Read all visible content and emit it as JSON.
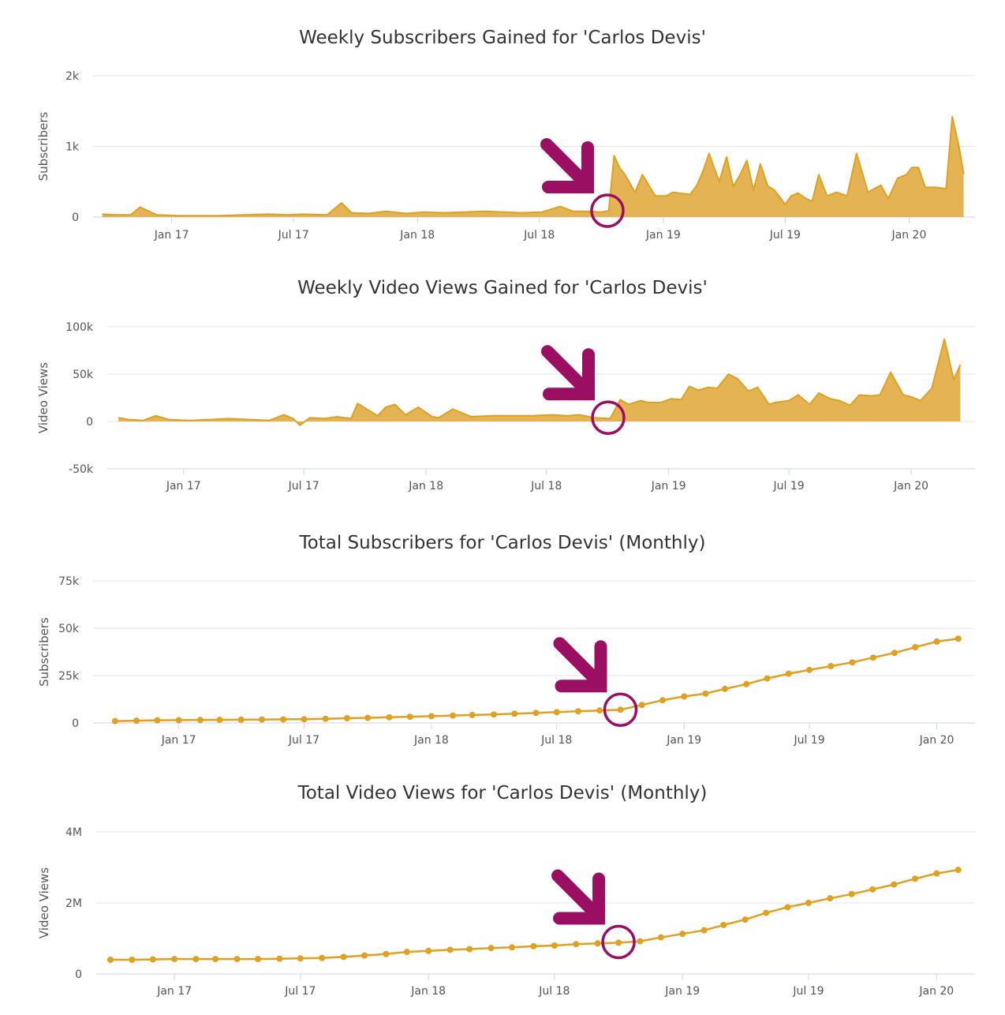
{
  "colors": {
    "series": "#e0a020",
    "fill": "#e3b04b",
    "grid": "#e6e6e6",
    "axis": "#ccd6eb",
    "annotation": "#9b0f63",
    "text": "#333333"
  },
  "chart_data": [
    {
      "type": "area",
      "title": "Weekly Subscribers Gained for 'Carlos Devis'",
      "ylabel": "Subscribers",
      "xlabel": "",
      "grid": true,
      "ylim": [
        0,
        2000
      ],
      "yticks": [
        0,
        1000,
        2000
      ],
      "ytick_labels": [
        "0",
        "1k",
        "2k"
      ],
      "xticks": [
        "2017-01-01",
        "2017-07-01",
        "2018-01-01",
        "2018-07-01",
        "2019-01-01",
        "2019-07-01",
        "2020-01-01"
      ],
      "xtick_labels": [
        "Jan 17",
        "Jul 17",
        "Jan 18",
        "Jul 18",
        "Jan 19",
        "Jul 19",
        "Jan 20"
      ],
      "xlim": [
        "2016-09-18",
        "2020-03-26"
      ],
      "annotation": {
        "type": "arrow-and-circle",
        "date": "2018-10-10",
        "value": 90
      },
      "series": [
        {
          "x": [
            "2016-09-20",
            "2016-10-10",
            "2016-11-01",
            "2016-11-15",
            "2016-12-10",
            "2017-01-10",
            "2017-02-15",
            "2017-03-15",
            "2017-04-20",
            "2017-05-25",
            "2017-06-20",
            "2017-07-15",
            "2017-08-20",
            "2017-09-10",
            "2017-09-25",
            "2017-10-20",
            "2017-11-15",
            "2017-12-15",
            "2018-01-10",
            "2018-02-10",
            "2018-03-10",
            "2018-04-10",
            "2018-05-10",
            "2018-06-05",
            "2018-07-05",
            "2018-08-01",
            "2018-08-20",
            "2018-09-10",
            "2018-10-01",
            "2018-10-12",
            "2018-10-20",
            "2018-10-28",
            "2018-11-05",
            "2018-11-20",
            "2018-12-01",
            "2018-12-20",
            "2019-01-05",
            "2019-01-15",
            "2019-02-01",
            "2019-02-10",
            "2019-02-20",
            "2019-03-01",
            "2019-03-10",
            "2019-03-25",
            "2019-04-05",
            "2019-04-15",
            "2019-04-25",
            "2019-05-05",
            "2019-05-15",
            "2019-05-25",
            "2019-06-05",
            "2019-06-15",
            "2019-07-01",
            "2019-07-10",
            "2019-07-20",
            "2019-08-01",
            "2019-08-10",
            "2019-08-20",
            "2019-09-01",
            "2019-09-15",
            "2019-10-01",
            "2019-10-15",
            "2019-11-01",
            "2019-11-10",
            "2019-11-20",
            "2019-12-01",
            "2019-12-15",
            "2019-12-28",
            "2020-01-05",
            "2020-01-15",
            "2020-01-25",
            "2020-02-10",
            "2020-02-25",
            "2020-03-05",
            "2020-03-15",
            "2020-03-22"
          ],
          "y": [
            40,
            30,
            30,
            140,
            30,
            20,
            20,
            20,
            30,
            40,
            30,
            40,
            30,
            200,
            60,
            50,
            80,
            50,
            70,
            60,
            70,
            80,
            70,
            60,
            70,
            150,
            80,
            80,
            70,
            90,
            870,
            700,
            600,
            350,
            600,
            300,
            300,
            350,
            330,
            320,
            450,
            650,
            900,
            500,
            850,
            430,
            600,
            800,
            380,
            750,
            440,
            380,
            180,
            300,
            340,
            260,
            220,
            600,
            300,
            350,
            300,
            900,
            350,
            400,
            450,
            260,
            550,
            600,
            700,
            700,
            420,
            420,
            400,
            1420,
            1000,
            610
          ]
        }
      ]
    },
    {
      "type": "area",
      "title": "Weekly Video Views Gained for 'Carlos Devis'",
      "ylabel": "Video Views",
      "xlabel": "",
      "grid": true,
      "ylim": [
        -50000,
        100000
      ],
      "yticks": [
        -50000,
        0,
        50000,
        100000
      ],
      "ytick_labels": [
        "-50k",
        "0",
        "50k",
        "100k"
      ],
      "xticks": [
        "2017-01-01",
        "2017-07-01",
        "2018-01-01",
        "2018-07-01",
        "2019-01-01",
        "2019-07-01",
        "2020-01-01"
      ],
      "xtick_labels": [
        "Jan 17",
        "Jul 17",
        "Jan 18",
        "Jul 18",
        "Jan 19",
        "Jul 19",
        "Jan 20"
      ],
      "xlim": [
        "2016-09-20",
        "2020-03-24"
      ],
      "annotation": {
        "type": "arrow-and-circle",
        "date": "2018-10-02",
        "value": 4000
      },
      "series": [
        {
          "x": [
            "2016-09-25",
            "2016-10-10",
            "2016-11-01",
            "2016-11-20",
            "2016-12-10",
            "2017-01-10",
            "2017-02-10",
            "2017-03-10",
            "2017-04-10",
            "2017-05-10",
            "2017-06-01",
            "2017-06-15",
            "2017-06-25",
            "2017-07-10",
            "2017-08-01",
            "2017-08-20",
            "2017-09-10",
            "2017-09-20",
            "2017-10-20",
            "2017-11-01",
            "2017-11-15",
            "2017-12-01",
            "2017-12-20",
            "2018-01-10",
            "2018-01-20",
            "2018-02-10",
            "2018-03-10",
            "2018-04-10",
            "2018-05-10",
            "2018-06-10",
            "2018-07-10",
            "2018-08-01",
            "2018-08-20",
            "2018-09-10",
            "2018-10-05",
            "2018-10-20",
            "2018-11-01",
            "2018-11-20",
            "2018-12-01",
            "2018-12-20",
            "2019-01-05",
            "2019-01-20",
            "2019-02-01",
            "2019-02-15",
            "2019-03-01",
            "2019-03-15",
            "2019-04-01",
            "2019-04-15",
            "2019-05-01",
            "2019-05-15",
            "2019-06-01",
            "2019-06-10",
            "2019-07-01",
            "2019-07-15",
            "2019-08-01",
            "2019-08-15",
            "2019-09-01",
            "2019-09-15",
            "2019-10-01",
            "2019-10-15",
            "2019-11-01",
            "2019-11-15",
            "2019-12-01",
            "2019-12-20",
            "2020-01-01",
            "2020-01-15",
            "2020-02-01",
            "2020-02-20",
            "2020-03-05",
            "2020-03-15"
          ],
          "y": [
            4000,
            2000,
            1000,
            6000,
            2000,
            1000,
            2000,
            3000,
            2000,
            1000,
            7000,
            3000,
            -4000,
            4000,
            3000,
            5000,
            3000,
            19000,
            6000,
            15000,
            18000,
            7000,
            15000,
            5000,
            4000,
            13000,
            5000,
            6000,
            6000,
            6000,
            7000,
            6000,
            7000,
            4000,
            3000,
            23000,
            18000,
            22000,
            20000,
            20000,
            24000,
            23000,
            37000,
            33000,
            36000,
            35000,
            50000,
            45000,
            32000,
            36000,
            18000,
            20000,
            22000,
            28000,
            18000,
            30000,
            24000,
            22000,
            17000,
            28000,
            27000,
            28000,
            52000,
            28000,
            26000,
            22000,
            35000,
            87000,
            44000,
            60000
          ]
        }
      ]
    },
    {
      "type": "line",
      "title": "Total Subscribers for 'Carlos Devis' (Monthly)",
      "ylabel": "Subscribers",
      "xlabel": "",
      "grid": true,
      "ylim": [
        0,
        75000
      ],
      "yticks": [
        0,
        25000,
        50000,
        75000
      ],
      "ytick_labels": [
        "0",
        "25k",
        "50k",
        "75k"
      ],
      "xticks": [
        "2017-01-01",
        "2017-07-01",
        "2018-01-01",
        "2018-07-01",
        "2019-01-01",
        "2019-07-01",
        "2020-01-01"
      ],
      "xtick_labels": [
        "Jan 17",
        "Jul 17",
        "Jan 18",
        "Jul 18",
        "Jan 19",
        "Jul 19",
        "Jan 20"
      ],
      "xlim": [
        "2016-09-22",
        "2020-02-15"
      ],
      "annotation": {
        "type": "arrow-and-circle",
        "date": "2018-10-01",
        "value": 7000
      },
      "series": [
        {
          "x": [
            "2016-10-01",
            "2016-11-01",
            "2016-12-01",
            "2017-01-01",
            "2017-02-01",
            "2017-03-01",
            "2017-04-01",
            "2017-05-01",
            "2017-06-01",
            "2017-07-01",
            "2017-08-01",
            "2017-09-01",
            "2017-10-01",
            "2017-11-01",
            "2017-12-01",
            "2018-01-01",
            "2018-02-01",
            "2018-03-01",
            "2018-04-01",
            "2018-05-01",
            "2018-06-01",
            "2018-07-01",
            "2018-08-01",
            "2018-09-01",
            "2018-10-01",
            "2018-11-01",
            "2018-12-01",
            "2019-01-01",
            "2019-02-01",
            "2019-03-01",
            "2019-04-01",
            "2019-05-01",
            "2019-06-01",
            "2019-07-01",
            "2019-08-01",
            "2019-09-01",
            "2019-10-01",
            "2019-11-01",
            "2019-12-01",
            "2020-01-01",
            "2020-02-01"
          ],
          "y": [
            1000,
            1200,
            1400,
            1500,
            1600,
            1650,
            1700,
            1800,
            1900,
            2000,
            2200,
            2500,
            2700,
            3000,
            3300,
            3600,
            3900,
            4200,
            4500,
            4900,
            5300,
            5700,
            6200,
            6600,
            7000,
            9500,
            12000,
            14000,
            15500,
            18000,
            20500,
            23500,
            26000,
            28000,
            30000,
            32000,
            34500,
            37000,
            40000,
            43000,
            44500
          ]
        }
      ]
    },
    {
      "type": "line",
      "title": "Total Video Views for 'Carlos Devis' (Monthly)",
      "ylabel": "Video Views",
      "xlabel": "",
      "grid": true,
      "ylim": [
        0,
        4000000
      ],
      "yticks": [
        0,
        2000000,
        4000000
      ],
      "ytick_labels": [
        "0",
        "2M",
        "4M"
      ],
      "xticks": [
        "2017-01-01",
        "2017-07-01",
        "2018-01-01",
        "2018-07-01",
        "2019-01-01",
        "2019-07-01",
        "2020-01-01"
      ],
      "xtick_labels": [
        "Jan 17",
        "Jul 17",
        "Jan 18",
        "Jul 18",
        "Jan 19",
        "Jul 19",
        "Jan 20"
      ],
      "xlim": [
        "2016-09-22",
        "2020-02-15"
      ],
      "annotation": {
        "type": "arrow-and-circle",
        "date": "2018-10-01",
        "value": 900000
      },
      "series": [
        {
          "x": [
            "2016-10-01",
            "2016-11-01",
            "2016-12-01",
            "2017-01-01",
            "2017-02-01",
            "2017-03-01",
            "2017-04-01",
            "2017-05-01",
            "2017-06-01",
            "2017-07-01",
            "2017-08-01",
            "2017-09-01",
            "2017-10-01",
            "2017-11-01",
            "2017-12-01",
            "2018-01-01",
            "2018-02-01",
            "2018-03-01",
            "2018-04-01",
            "2018-05-01",
            "2018-06-01",
            "2018-07-01",
            "2018-08-01",
            "2018-09-01",
            "2018-10-01",
            "2018-11-01",
            "2018-12-01",
            "2019-01-01",
            "2019-02-01",
            "2019-03-01",
            "2019-04-01",
            "2019-05-01",
            "2019-06-01",
            "2019-07-01",
            "2019-08-01",
            "2019-09-01",
            "2019-10-01",
            "2019-11-01",
            "2019-12-01",
            "2020-01-01",
            "2020-02-01"
          ],
          "y": [
            400000,
            400000,
            410000,
            420000,
            420000,
            420000,
            420000,
            420000,
            430000,
            440000,
            450000,
            480000,
            520000,
            560000,
            620000,
            650000,
            680000,
            700000,
            730000,
            750000,
            780000,
            800000,
            840000,
            860000,
            880000,
            920000,
            1030000,
            1130000,
            1230000,
            1380000,
            1530000,
            1720000,
            1880000,
            2000000,
            2130000,
            2250000,
            2380000,
            2520000,
            2680000,
            2830000,
            2930000
          ]
        }
      ]
    }
  ]
}
